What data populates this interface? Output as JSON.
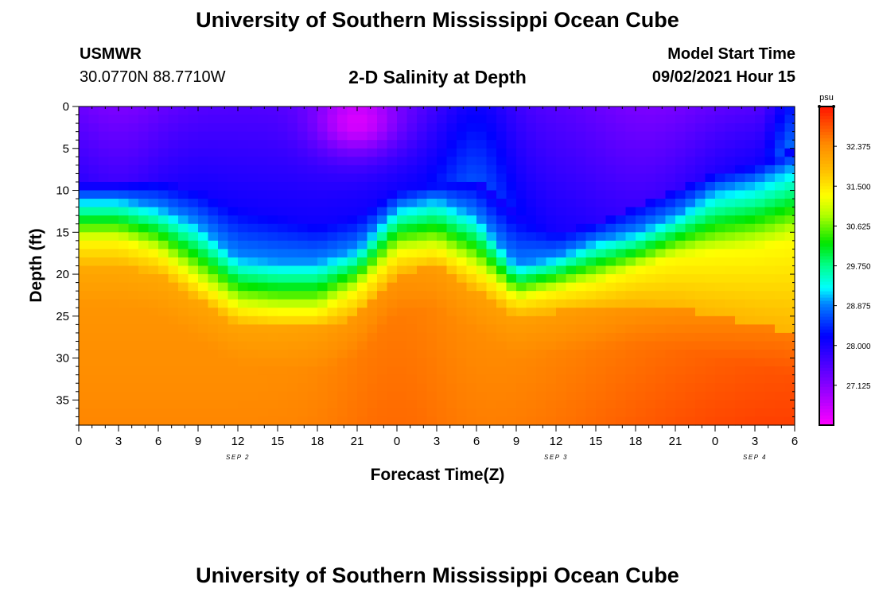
{
  "page": {
    "top_title": "University of Southern Mississippi Ocean Cube",
    "bottom_title": "University of Southern Mississippi Ocean Cube",
    "station": "USMWR",
    "coords": "30.0770N  88.7710W",
    "model_start_label": "Model Start Time",
    "model_start_value": "09/02/2021 Hour 15"
  },
  "colors": {
    "text": "#000000",
    "background": "#ffffff"
  },
  "chart_data": {
    "type": "heatmap",
    "title": "2-D Salinity at Depth",
    "xlabel": "Forecast Time(Z)",
    "ylabel": "Depth (ft)",
    "x_tick_labels": [
      "0",
      "3",
      "6",
      "9",
      "12",
      "15",
      "18",
      "21",
      "0",
      "3",
      "6",
      "9",
      "12",
      "15",
      "18",
      "21",
      "0",
      "3",
      "6"
    ],
    "date_labels": [
      {
        "label": "SEP 2",
        "at_tick": 4
      },
      {
        "label": "SEP 3",
        "at_tick": 12
      },
      {
        "label": "SEP 4",
        "at_tick": 17
      }
    ],
    "xlim_hours": [
      0,
      54
    ],
    "y_ticks": [
      0,
      5,
      10,
      15,
      20,
      25,
      30,
      35
    ],
    "ylim": [
      0,
      38
    ],
    "colorbar": {
      "unit": "psu",
      "min": 26.25,
      "max": 33.25,
      "ticks": [
        "32.375",
        "31.500",
        "30.625",
        "29.750",
        "28.875",
        "28.000",
        "27.125"
      ],
      "tick_values": [
        32.375,
        31.5,
        30.625,
        29.75,
        28.875,
        28.0,
        27.125
      ]
    },
    "series": [
      {
        "name": "surface_layer_bottom_ft",
        "x_hours": [
          0,
          3,
          6,
          9,
          12,
          15,
          18,
          21,
          24,
          27,
          30,
          33,
          36,
          39,
          42,
          45,
          48,
          51,
          54
        ],
        "values": [
          9.5,
          9.5,
          9,
          10,
          12,
          13,
          14,
          13,
          10,
          9,
          9,
          13,
          15,
          14,
          12,
          10,
          8,
          7,
          5
        ]
      },
      {
        "name": "halocline_top_ft",
        "x_hours": [
          0,
          3,
          6,
          9,
          12,
          15,
          18,
          21,
          24,
          27,
          30,
          33,
          36,
          39,
          42,
          45,
          48,
          51,
          54
        ],
        "values": [
          11,
          11,
          12,
          14,
          18,
          18.5,
          18.5,
          17,
          12,
          11,
          13,
          19,
          18,
          16,
          15,
          13,
          10,
          9,
          7
        ]
      },
      {
        "name": "halocline_mid_ft",
        "x_hours": [
          0,
          3,
          6,
          9,
          12,
          15,
          18,
          21,
          24,
          27,
          30,
          33,
          36,
          39,
          42,
          45,
          48,
          51,
          54
        ],
        "values": [
          16,
          16,
          17.5,
          21,
          24,
          24.5,
          24.5,
          22,
          17.5,
          17,
          19.5,
          23,
          22,
          21,
          19.5,
          18,
          17.5,
          17,
          16
        ]
      },
      {
        "name": "deep_layer_top_ft",
        "x_hours": [
          0,
          3,
          6,
          9,
          12,
          15,
          18,
          21,
          24,
          27,
          30,
          33,
          36,
          39,
          42,
          45,
          48,
          51,
          54
        ],
        "values": [
          19,
          19,
          20,
          23,
          26,
          26.5,
          26.5,
          25,
          20,
          19,
          22,
          25,
          24.5,
          24,
          23.5,
          24,
          25,
          26,
          27
        ]
      }
    ]
  }
}
